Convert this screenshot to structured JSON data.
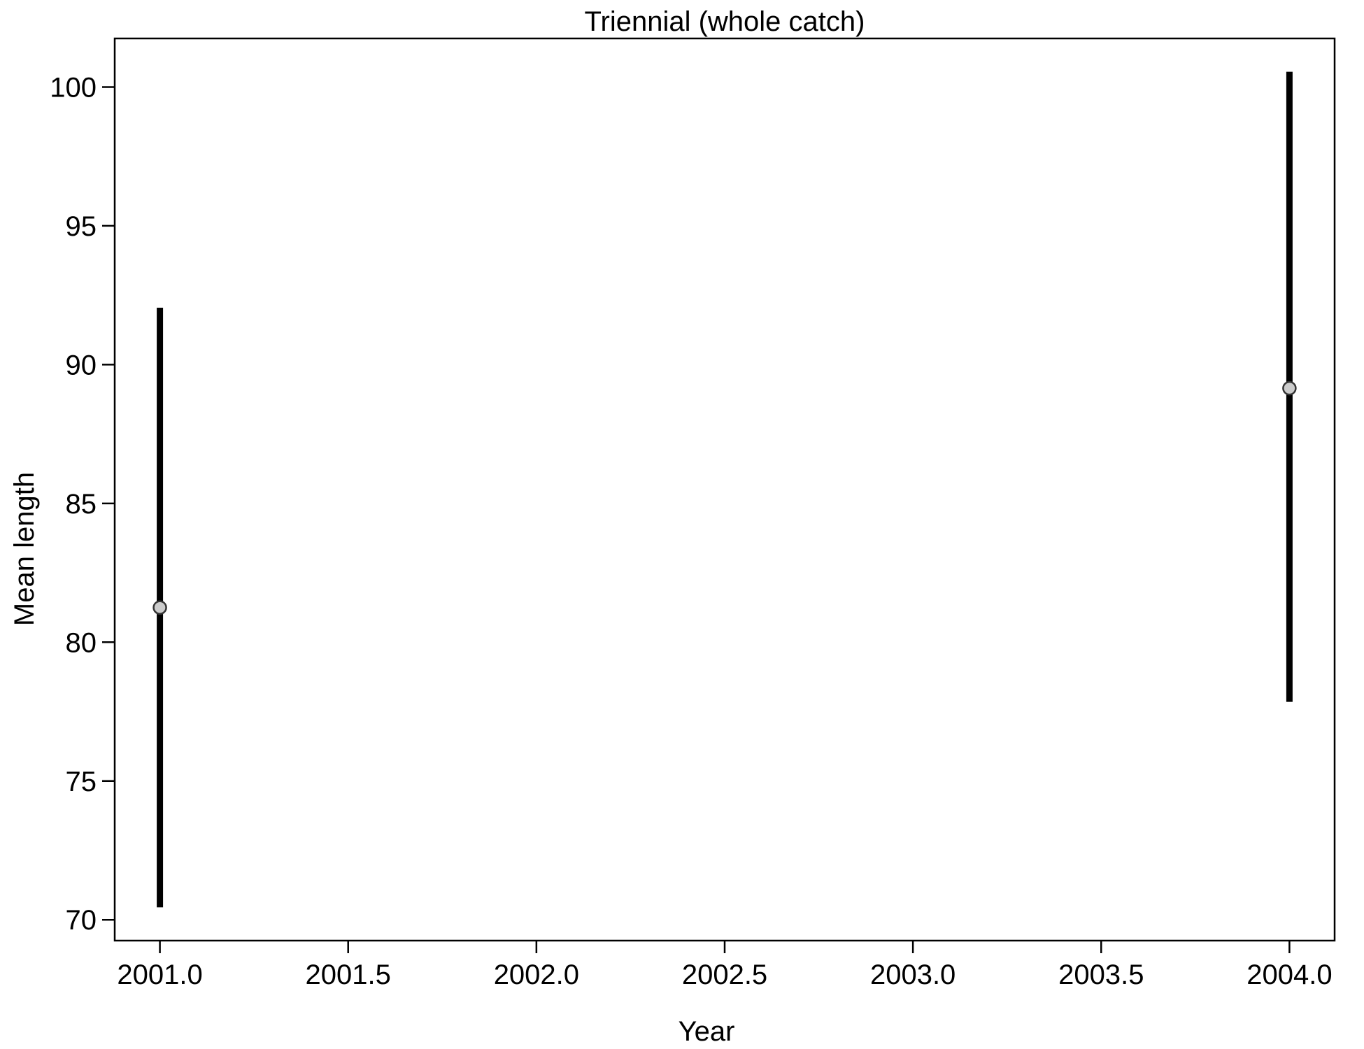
{
  "chart_data": {
    "type": "scatter",
    "title": "Triennial (whole catch)",
    "xlabel": "Year",
    "ylabel": "Mean length",
    "xlim": [
      2000.88,
      2004.12
    ],
    "ylim": [
      69.25,
      101.75
    ],
    "x_ticks": [
      2001.0,
      2001.5,
      2002.0,
      2002.5,
      2003.0,
      2003.5,
      2004.0
    ],
    "x_tick_labels": [
      "2001.0",
      "2001.5",
      "2002.0",
      "2002.5",
      "2003.0",
      "2003.5",
      "2004.0"
    ],
    "y_ticks": [
      70,
      75,
      80,
      85,
      90,
      95,
      100
    ],
    "y_tick_labels": [
      "70",
      "75",
      "80",
      "85",
      "90",
      "95",
      "100"
    ],
    "grid": false,
    "legend": "none",
    "colors": {
      "interval": "#000000",
      "point_fill": "#cccccc",
      "point_stroke": "#333333"
    },
    "points": [
      {
        "x": 2001.0,
        "y": 81.25,
        "lower": 70.45,
        "upper": 92.05
      },
      {
        "x": 2004.0,
        "y": 89.15,
        "lower": 77.85,
        "upper": 100.55
      }
    ]
  }
}
